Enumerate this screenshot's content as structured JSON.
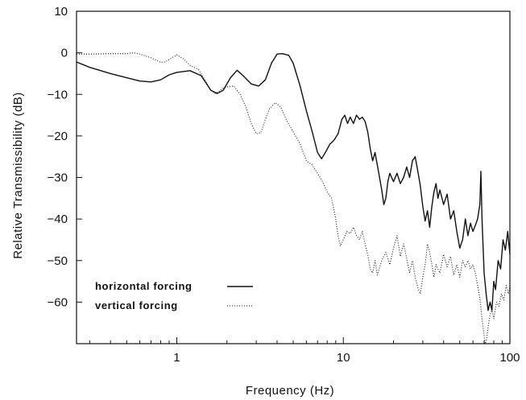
{
  "chart_data": {
    "type": "line",
    "xlabel": "Frequency (Hz)",
    "ylabel": "Relative Transmissibility (dB)",
    "xscale": "log",
    "xlim": [
      0.25,
      100
    ],
    "ylim": [
      -70,
      10
    ],
    "xticks": [
      {
        "value": 1,
        "label": "1"
      },
      {
        "value": 10,
        "label": "10"
      },
      {
        "value": 100,
        "label": "100"
      }
    ],
    "yticks": [
      {
        "value": 10,
        "label": "10"
      },
      {
        "value": 0,
        "label": "0"
      },
      {
        "value": -10,
        "label": "-10"
      },
      {
        "value": -20,
        "label": "-20"
      },
      {
        "value": -30,
        "label": "-30"
      },
      {
        "value": -40,
        "label": "-40"
      },
      {
        "value": -50,
        "label": "-50"
      },
      {
        "value": -60,
        "label": "-60"
      }
    ],
    "grid": false,
    "legend_position": "bottom-left",
    "series": [
      {
        "name": "horizontal forcing",
        "style": "solid",
        "color": "#111111",
        "points": [
          [
            0.25,
            -2.2
          ],
          [
            0.3,
            -3.5
          ],
          [
            0.4,
            -5.0
          ],
          [
            0.5,
            -6.0
          ],
          [
            0.6,
            -6.8
          ],
          [
            0.7,
            -7.0
          ],
          [
            0.8,
            -6.5
          ],
          [
            0.9,
            -5.3
          ],
          [
            1.0,
            -4.7
          ],
          [
            1.2,
            -4.3
          ],
          [
            1.4,
            -5.5
          ],
          [
            1.6,
            -9.0
          ],
          [
            1.75,
            -9.8
          ],
          [
            1.9,
            -9.0
          ],
          [
            2.1,
            -6.0
          ],
          [
            2.3,
            -4.2
          ],
          [
            2.5,
            -5.5
          ],
          [
            2.8,
            -7.5
          ],
          [
            3.1,
            -8.0
          ],
          [
            3.4,
            -6.5
          ],
          [
            3.7,
            -2.5
          ],
          [
            4.0,
            -0.3
          ],
          [
            4.3,
            -0.2
          ],
          [
            4.7,
            -0.6
          ],
          [
            5.0,
            -2.5
          ],
          [
            5.5,
            -8.0
          ],
          [
            6.0,
            -14.0
          ],
          [
            6.5,
            -19.0
          ],
          [
            7.0,
            -24.0
          ],
          [
            7.4,
            -25.5
          ],
          [
            7.8,
            -24.0
          ],
          [
            8.3,
            -22.0
          ],
          [
            8.8,
            -21.0
          ],
          [
            9.3,
            -19.5
          ],
          [
            9.8,
            -16.0
          ],
          [
            10.2,
            -15.0
          ],
          [
            10.6,
            -17.0
          ],
          [
            11.0,
            -15.5
          ],
          [
            11.5,
            -17.0
          ],
          [
            12.0,
            -15.0
          ],
          [
            12.5,
            -16.0
          ],
          [
            13.0,
            -15.5
          ],
          [
            13.5,
            -16.5
          ],
          [
            14.0,
            -19.0
          ],
          [
            14.5,
            -23.0
          ],
          [
            15.0,
            -26.0
          ],
          [
            15.5,
            -24.0
          ],
          [
            16.0,
            -27.0
          ],
          [
            16.5,
            -30.0
          ],
          [
            17.0,
            -33.0
          ],
          [
            17.5,
            -36.5
          ],
          [
            18.0,
            -35.0
          ],
          [
            18.5,
            -31.0
          ],
          [
            19.0,
            -29.0
          ],
          [
            20.0,
            -31.0
          ],
          [
            21.0,
            -29.0
          ],
          [
            22.0,
            -31.5
          ],
          [
            23.0,
            -30.0
          ],
          [
            24.0,
            -27.5
          ],
          [
            25.0,
            -30.0
          ],
          [
            26.0,
            -26.0
          ],
          [
            27.0,
            -25.0
          ],
          [
            28.0,
            -28.5
          ],
          [
            29.0,
            -32.0
          ],
          [
            30.0,
            -37.0
          ],
          [
            31.0,
            -40.5
          ],
          [
            32.0,
            -38.0
          ],
          [
            33.0,
            -42.0
          ],
          [
            34.0,
            -37.0
          ],
          [
            35.0,
            -33.5
          ],
          [
            36.0,
            -31.5
          ],
          [
            37.0,
            -35.0
          ],
          [
            38.0,
            -33.0
          ],
          [
            40.0,
            -36.5
          ],
          [
            42.0,
            -34.0
          ],
          [
            44.0,
            -40.0
          ],
          [
            46.0,
            -38.0
          ],
          [
            48.0,
            -43.0
          ],
          [
            50.0,
            -47.0
          ],
          [
            52.0,
            -45.0
          ],
          [
            54.0,
            -40.0
          ],
          [
            56.0,
            -44.0
          ],
          [
            58.0,
            -41.0
          ],
          [
            60.0,
            -43.0
          ],
          [
            62.0,
            -41.5
          ],
          [
            64.0,
            -40.0
          ],
          [
            66.0,
            -36.5
          ],
          [
            67.0,
            -28.5
          ],
          [
            68.0,
            -40.0
          ],
          [
            70.0,
            -53.0
          ],
          [
            72.0,
            -58.0
          ],
          [
            74.0,
            -62.0
          ],
          [
            76.0,
            -60.0
          ],
          [
            78.0,
            -62.0
          ],
          [
            80.0,
            -55.0
          ],
          [
            82.0,
            -57.0
          ],
          [
            85.0,
            -50.0
          ],
          [
            88.0,
            -52.0
          ],
          [
            91.0,
            -45.0
          ],
          [
            94.0,
            -47.5
          ],
          [
            97.0,
            -43.0
          ],
          [
            100.0,
            -48.5
          ]
        ]
      },
      {
        "name": "vertical forcing",
        "style": "dotted",
        "color": "#111111",
        "points": [
          [
            0.25,
            -0.3
          ],
          [
            0.3,
            -0.3
          ],
          [
            0.4,
            -0.2
          ],
          [
            0.5,
            -0.2
          ],
          [
            0.55,
            0.0
          ],
          [
            0.6,
            -0.3
          ],
          [
            0.7,
            -1.2
          ],
          [
            0.8,
            -2.3
          ],
          [
            0.85,
            -2.2
          ],
          [
            0.9,
            -1.6
          ],
          [
            1.0,
            -0.5
          ],
          [
            1.1,
            -1.5
          ],
          [
            1.2,
            -3.0
          ],
          [
            1.35,
            -4.0
          ],
          [
            1.5,
            -7.0
          ],
          [
            1.6,
            -9.0
          ],
          [
            1.7,
            -9.8
          ],
          [
            1.8,
            -9.2
          ],
          [
            1.9,
            -8.5
          ],
          [
            2.0,
            -8.2
          ],
          [
            2.2,
            -8.0
          ],
          [
            2.4,
            -10.0
          ],
          [
            2.6,
            -13.0
          ],
          [
            2.8,
            -17.0
          ],
          [
            3.0,
            -19.5
          ],
          [
            3.2,
            -19.2
          ],
          [
            3.4,
            -16.0
          ],
          [
            3.6,
            -13.5
          ],
          [
            3.9,
            -12.0
          ],
          [
            4.2,
            -13.0
          ],
          [
            4.6,
            -16.5
          ],
          [
            5.0,
            -19.0
          ],
          [
            5.5,
            -22.0
          ],
          [
            6.0,
            -26.0
          ],
          [
            6.5,
            -27.0
          ],
          [
            7.0,
            -29.0
          ],
          [
            7.5,
            -31.0
          ],
          [
            8.0,
            -33.5
          ],
          [
            8.5,
            -35.0
          ],
          [
            9.0,
            -40.0
          ],
          [
            9.3,
            -44.0
          ],
          [
            9.6,
            -46.5
          ],
          [
            10.0,
            -45.0
          ],
          [
            10.5,
            -43.0
          ],
          [
            11.0,
            -43.5
          ],
          [
            11.5,
            -42.0
          ],
          [
            12.0,
            -44.0
          ],
          [
            12.5,
            -45.0
          ],
          [
            13.0,
            -43.0
          ],
          [
            13.5,
            -46.0
          ],
          [
            14.0,
            -48.5
          ],
          [
            14.5,
            -52.0
          ],
          [
            15.0,
            -53.0
          ],
          [
            15.5,
            -50.0
          ],
          [
            16.0,
            -53.5
          ],
          [
            17.0,
            -50.0
          ],
          [
            18.0,
            -48.0
          ],
          [
            19.0,
            -51.0
          ],
          [
            20.0,
            -47.0
          ],
          [
            21.0,
            -44.0
          ],
          [
            22.0,
            -49.0
          ],
          [
            23.0,
            -46.0
          ],
          [
            24.0,
            -49.5
          ],
          [
            25.0,
            -53.0
          ],
          [
            26.0,
            -50.0
          ],
          [
            27.0,
            -54.0
          ],
          [
            28.0,
            -56.5
          ],
          [
            29.0,
            -58.0
          ],
          [
            30.0,
            -54.0
          ],
          [
            31.0,
            -51.0
          ],
          [
            32.0,
            -46.0
          ],
          [
            33.0,
            -48.0
          ],
          [
            34.0,
            -51.0
          ],
          [
            35.0,
            -54.0
          ],
          [
            36.0,
            -51.0
          ],
          [
            38.0,
            -53.0
          ],
          [
            40.0,
            -48.5
          ],
          [
            42.0,
            -51.5
          ],
          [
            44.0,
            -49.0
          ],
          [
            46.0,
            -53.5
          ],
          [
            48.0,
            -51.0
          ],
          [
            50.0,
            -54.0
          ],
          [
            52.0,
            -50.0
          ],
          [
            54.0,
            -51.5
          ],
          [
            56.0,
            -50.0
          ],
          [
            58.0,
            -52.0
          ],
          [
            60.0,
            -51.0
          ],
          [
            62.0,
            -53.0
          ],
          [
            64.0,
            -56.0
          ],
          [
            66.0,
            -59.0
          ],
          [
            68.0,
            -64.0
          ],
          [
            70.0,
            -68.0
          ],
          [
            71.0,
            -70.0
          ],
          [
            72.0,
            -69.5
          ],
          [
            74.0,
            -66.0
          ],
          [
            76.0,
            -63.0
          ],
          [
            78.0,
            -62.0
          ],
          [
            80.0,
            -64.0
          ],
          [
            83.0,
            -60.0
          ],
          [
            86.0,
            -61.0
          ],
          [
            89.0,
            -58.0
          ],
          [
            92.0,
            -59.5
          ],
          [
            95.0,
            -56.0
          ],
          [
            98.0,
            -58.0
          ],
          [
            100.0,
            -56.0
          ]
        ]
      }
    ]
  }
}
